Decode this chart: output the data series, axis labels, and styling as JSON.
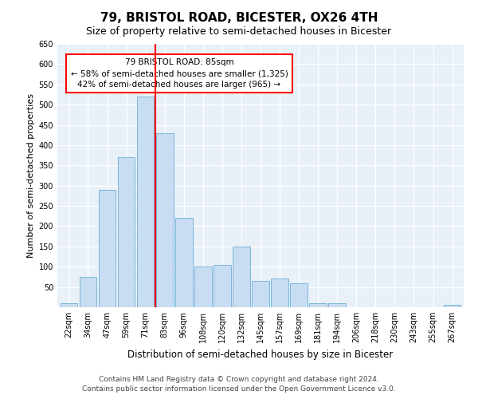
{
  "title": "79, BRISTOL ROAD, BICESTER, OX26 4TH",
  "subtitle": "Size of property relative to semi-detached houses in Bicester",
  "xlabel": "Distribution of semi-detached houses by size in Bicester",
  "ylabel": "Number of semi-detached properties",
  "categories": [
    "22sqm",
    "34sqm",
    "47sqm",
    "59sqm",
    "71sqm",
    "83sqm",
    "96sqm",
    "108sqm",
    "120sqm",
    "132sqm",
    "145sqm",
    "157sqm",
    "169sqm",
    "181sqm",
    "194sqm",
    "206sqm",
    "218sqm",
    "230sqm",
    "243sqm",
    "255sqm",
    "267sqm"
  ],
  "values": [
    10,
    75,
    290,
    370,
    520,
    430,
    220,
    100,
    105,
    150,
    65,
    70,
    60,
    10,
    10,
    0,
    0,
    0,
    0,
    0,
    5
  ],
  "bar_color": "#c9ddf2",
  "bar_edge_color": "#6aadd5",
  "prop_line_bin": 5,
  "annotation_text_line1": "79 BRISTOL ROAD: 85sqm",
  "annotation_text_line2": "← 58% of semi-detached houses are smaller (1,325)",
  "annotation_text_line3": "42% of semi-detached houses are larger (965) →",
  "ylim": [
    0,
    650
  ],
  "yticks": [
    0,
    50,
    100,
    150,
    200,
    250,
    300,
    350,
    400,
    450,
    500,
    550,
    600,
    650
  ],
  "footnote1": "Contains HM Land Registry data © Crown copyright and database right 2024.",
  "footnote2": "Contains public sector information licensed under the Open Government Licence v3.0.",
  "plot_bg_color": "#e8f0f8",
  "grid_color": "#ffffff",
  "title_fontsize": 11,
  "subtitle_fontsize": 9,
  "xlabel_fontsize": 8.5,
  "ylabel_fontsize": 8,
  "tick_fontsize": 7,
  "footnote_fontsize": 6.5,
  "annot_fontsize": 7.5
}
